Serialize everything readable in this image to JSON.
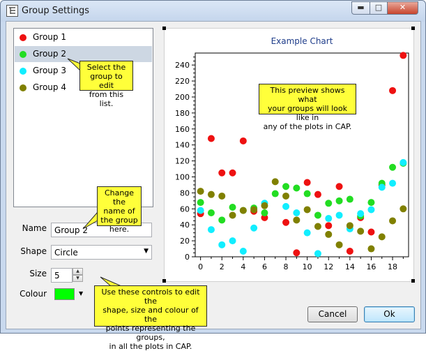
{
  "window": {
    "title": "Group Settings",
    "minimize": "▬",
    "maximize": "□",
    "close": "✕"
  },
  "groups": [
    {
      "label": "Group 1",
      "color": "#ee1111",
      "selected": false
    },
    {
      "label": "Group 2",
      "color": "#22dd22",
      "selected": true
    },
    {
      "label": "Group 3",
      "color": "#11eeff",
      "selected": false
    },
    {
      "label": "Group 4",
      "color": "#808000",
      "selected": false
    }
  ],
  "form": {
    "name_label": "Name",
    "name_value": "Group 2",
    "shape_label": "Shape",
    "shape_value": "Circle",
    "size_label": "Size",
    "size_value": "5",
    "colour_label": "Colour",
    "colour_value": "#00ff00"
  },
  "callouts": {
    "select": [
      "Select the",
      "group to edit",
      "from this list."
    ],
    "change": [
      "Change the",
      "name of",
      "the group",
      "here."
    ],
    "controls": [
      "Use these controls to edit the",
      "shape, size and colour of the",
      "points representing the groups,",
      "in all the plots in CAP."
    ],
    "preview": [
      "This preview shows what",
      "your groups will look like in",
      "any of the plots in CAP."
    ]
  },
  "buttons": {
    "cancel": "Cancel",
    "ok": "Ok"
  },
  "chart_data": {
    "type": "scatter",
    "title": "Example Chart",
    "xlabel": "",
    "ylabel": "",
    "xlim": [
      -0.5,
      19.5
    ],
    "ylim": [
      0,
      255
    ],
    "x_ticks": [
      0,
      2,
      4,
      6,
      8,
      10,
      12,
      14,
      16,
      18
    ],
    "y_ticks": [
      0,
      20,
      40,
      60,
      80,
      100,
      120,
      140,
      160,
      180,
      200,
      220,
      240
    ],
    "grid": false,
    "legend": "none",
    "series": [
      {
        "color": "#ee1111",
        "points": [
          [
            0,
            54
          ],
          [
            1,
            148
          ],
          [
            2,
            105
          ],
          [
            3,
            105
          ],
          [
            4,
            145
          ],
          [
            5,
            57
          ],
          [
            6,
            49
          ],
          [
            8,
            43
          ],
          [
            9,
            5
          ],
          [
            10,
            93
          ],
          [
            11,
            78
          ],
          [
            12,
            39
          ],
          [
            13,
            88
          ],
          [
            14,
            7
          ],
          [
            15,
            49
          ],
          [
            16,
            31
          ],
          [
            17,
            90
          ],
          [
            18,
            208
          ],
          [
            19,
            252
          ]
        ]
      },
      {
        "color": "#22dd22",
        "points": [
          [
            0,
            68
          ],
          [
            1,
            55
          ],
          [
            2,
            46
          ],
          [
            3,
            62
          ],
          [
            4,
            58
          ],
          [
            5,
            61
          ],
          [
            6,
            55
          ],
          [
            7,
            79
          ],
          [
            8,
            88
          ],
          [
            9,
            86
          ],
          [
            10,
            79
          ],
          [
            11,
            52
          ],
          [
            12,
            67
          ],
          [
            13,
            70
          ],
          [
            14,
            72
          ],
          [
            15,
            51
          ],
          [
            16,
            68
          ],
          [
            17,
            92
          ],
          [
            18,
            112
          ],
          [
            19,
            117
          ]
        ]
      },
      {
        "color": "#11eeff",
        "points": [
          [
            0,
            58
          ],
          [
            1,
            34
          ],
          [
            2,
            15
          ],
          [
            3,
            20
          ],
          [
            4,
            7
          ],
          [
            5,
            36
          ],
          [
            6,
            67
          ],
          [
            8,
            63
          ],
          [
            9,
            55
          ],
          [
            10,
            30
          ],
          [
            11,
            4
          ],
          [
            12,
            48
          ],
          [
            13,
            52
          ],
          [
            14,
            35
          ],
          [
            15,
            54
          ],
          [
            16,
            59
          ],
          [
            17,
            87
          ],
          [
            18,
            92
          ],
          [
            19,
            118
          ]
        ]
      },
      {
        "color": "#808000",
        "points": [
          [
            0,
            82
          ],
          [
            1,
            78
          ],
          [
            2,
            76
          ],
          [
            3,
            52
          ],
          [
            4,
            58
          ],
          [
            5,
            59
          ],
          [
            6,
            64
          ],
          [
            7,
            94
          ],
          [
            8,
            76
          ],
          [
            9,
            46
          ],
          [
            10,
            59
          ],
          [
            11,
            38
          ],
          [
            12,
            28
          ],
          [
            13,
            15
          ],
          [
            14,
            39
          ],
          [
            15,
            32
          ],
          [
            16,
            10
          ],
          [
            17,
            25
          ],
          [
            18,
            45
          ],
          [
            19,
            60
          ]
        ]
      }
    ]
  }
}
